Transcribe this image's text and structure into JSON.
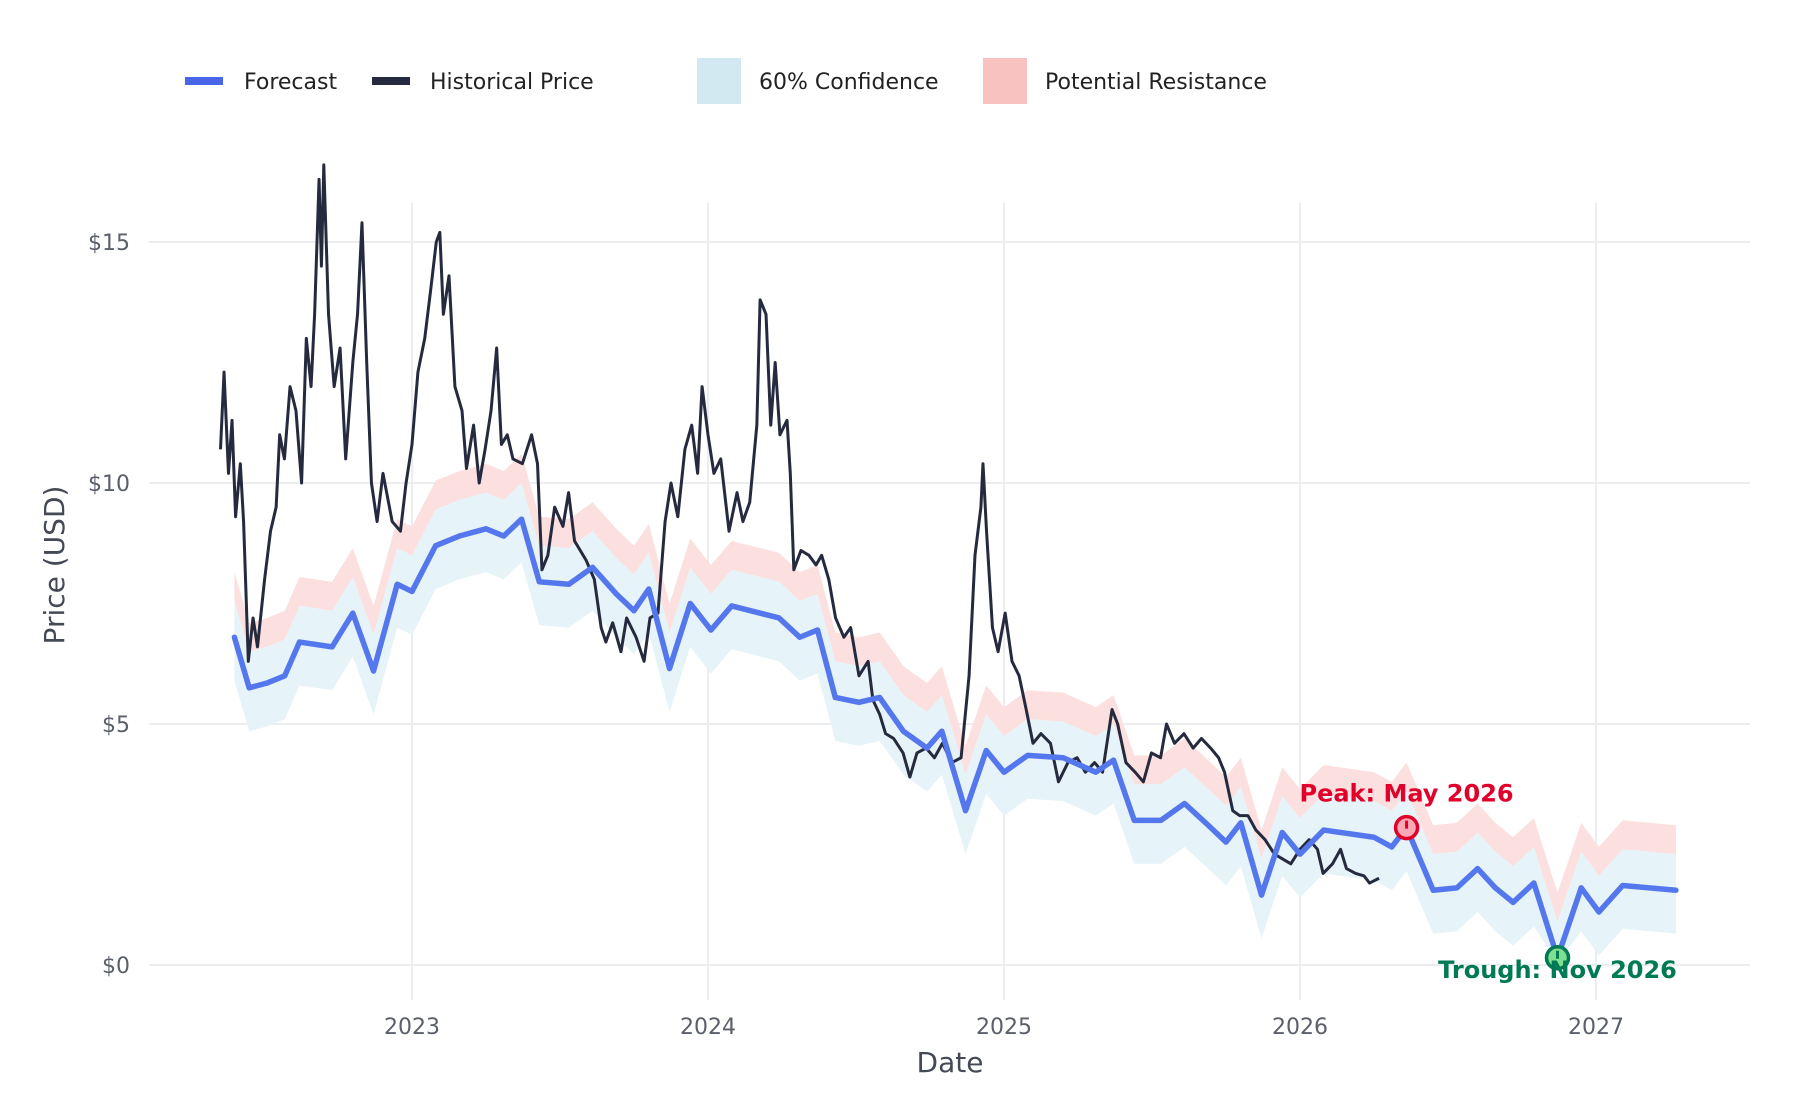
{
  "chart_data": {
    "type": "line",
    "title": "",
    "xlabel": "Date",
    "ylabel": "Price (USD)",
    "xlim": [
      2022.12,
      2027.52
    ],
    "ylim": [
      -0.7,
      17.8
    ],
    "grid": true,
    "legend_position": "top-left",
    "x_ticks": [
      {
        "value": 2023,
        "label": "2023"
      },
      {
        "value": 2024,
        "label": "2024"
      },
      {
        "value": 2025,
        "label": "2025"
      },
      {
        "value": 2026,
        "label": "2026"
      },
      {
        "value": 2027,
        "label": "2027"
      }
    ],
    "y_ticks": [
      {
        "value": 0,
        "label": "$0"
      },
      {
        "value": 5,
        "label": "$5"
      },
      {
        "value": 10,
        "label": "$10"
      },
      {
        "value": 15,
        "label": "$15"
      }
    ],
    "legend": [
      {
        "label": "Forecast",
        "kind": "line",
        "color": "#4a66e8"
      },
      {
        "label": "Historical Price",
        "kind": "line",
        "color": "#262a3f"
      },
      {
        "label": "60% Confidence",
        "kind": "box",
        "color": "#d3e9f1"
      },
      {
        "label": "Potential Resistance",
        "kind": "box",
        "color": "#f8c2c0"
      }
    ],
    "colors": {
      "forecast": "#5577ee",
      "historical": "#262a3f",
      "confidence": "#e6f3f8",
      "resistance": "#fbe0df",
      "peak": "#e0002a",
      "trough": "#007a55",
      "grid": "#ebedf0"
    },
    "series": [
      {
        "name": "Historical Price",
        "points": [
          [
            2022.353,
            10.7
          ],
          [
            2022.365,
            12.3
          ],
          [
            2022.38,
            10.2
          ],
          [
            2022.392,
            11.3
          ],
          [
            2022.404,
            9.3
          ],
          [
            2022.42,
            10.4
          ],
          [
            2022.431,
            9.2
          ],
          [
            2022.447,
            6.3
          ],
          [
            2022.463,
            7.2
          ],
          [
            2022.478,
            6.6
          ],
          [
            2022.502,
            8.0
          ],
          [
            2022.522,
            9.0
          ],
          [
            2022.541,
            9.5
          ],
          [
            2022.553,
            11.0
          ],
          [
            2022.569,
            10.5
          ],
          [
            2022.588,
            12.0
          ],
          [
            2022.608,
            11.5
          ],
          [
            2022.627,
            10.0
          ],
          [
            2022.643,
            13.0
          ],
          [
            2022.659,
            12.0
          ],
          [
            2022.671,
            13.5
          ],
          [
            2022.686,
            16.3
          ],
          [
            2022.694,
            14.5
          ],
          [
            2022.702,
            16.6
          ],
          [
            2022.718,
            13.5
          ],
          [
            2022.737,
            12.0
          ],
          [
            2022.757,
            12.8
          ],
          [
            2022.776,
            10.5
          ],
          [
            2022.8,
            12.5
          ],
          [
            2022.816,
            13.5
          ],
          [
            2022.831,
            15.4
          ],
          [
            2022.847,
            12.5
          ],
          [
            2022.863,
            10.0
          ],
          [
            2022.882,
            9.2
          ],
          [
            2022.902,
            10.2
          ],
          [
            2022.933,
            9.2
          ],
          [
            2022.961,
            9.0
          ],
          [
            2022.98,
            10.0
          ],
          [
            2023.0,
            10.8
          ],
          [
            2023.02,
            12.3
          ],
          [
            2023.043,
            13.0
          ],
          [
            2023.063,
            14.0
          ],
          [
            2023.082,
            15.0
          ],
          [
            2023.094,
            15.2
          ],
          [
            2023.106,
            13.5
          ],
          [
            2023.125,
            14.3
          ],
          [
            2023.145,
            12.0
          ],
          [
            2023.169,
            11.5
          ],
          [
            2023.184,
            10.3
          ],
          [
            2023.208,
            11.2
          ],
          [
            2023.227,
            10.0
          ],
          [
            2023.247,
            10.7
          ],
          [
            2023.267,
            11.5
          ],
          [
            2023.286,
            12.8
          ],
          [
            2023.302,
            10.8
          ],
          [
            2023.322,
            11.0
          ],
          [
            2023.341,
            10.5
          ],
          [
            2023.373,
            10.4
          ],
          [
            2023.404,
            11.0
          ],
          [
            2023.424,
            10.4
          ],
          [
            2023.439,
            8.2
          ],
          [
            2023.459,
            8.5
          ],
          [
            2023.482,
            9.5
          ],
          [
            2023.51,
            9.1
          ],
          [
            2023.529,
            9.8
          ],
          [
            2023.549,
            8.8
          ],
          [
            2023.588,
            8.4
          ],
          [
            2023.616,
            8.0
          ],
          [
            2023.639,
            7.0
          ],
          [
            2023.655,
            6.7
          ],
          [
            2023.678,
            7.1
          ],
          [
            2023.706,
            6.5
          ],
          [
            2023.725,
            7.2
          ],
          [
            2023.757,
            6.8
          ],
          [
            2023.784,
            6.3
          ],
          [
            2023.804,
            7.2
          ],
          [
            2023.831,
            7.3
          ],
          [
            2023.855,
            9.2
          ],
          [
            2023.875,
            10.0
          ],
          [
            2023.898,
            9.3
          ],
          [
            2023.922,
            10.7
          ],
          [
            2023.945,
            11.2
          ],
          [
            2023.965,
            10.2
          ],
          [
            2023.98,
            12.0
          ],
          [
            2024.0,
            11.0
          ],
          [
            2024.02,
            10.2
          ],
          [
            2024.043,
            10.5
          ],
          [
            2024.071,
            9.0
          ],
          [
            2024.098,
            9.8
          ],
          [
            2024.118,
            9.2
          ],
          [
            2024.141,
            9.6
          ],
          [
            2024.165,
            11.2
          ],
          [
            2024.176,
            13.8
          ],
          [
            2024.196,
            13.5
          ],
          [
            2024.212,
            11.2
          ],
          [
            2024.227,
            12.5
          ],
          [
            2024.243,
            11.0
          ],
          [
            2024.267,
            11.3
          ],
          [
            2024.278,
            10.2
          ],
          [
            2024.29,
            8.2
          ],
          [
            2024.314,
            8.6
          ],
          [
            2024.341,
            8.5
          ],
          [
            2024.365,
            8.3
          ],
          [
            2024.384,
            8.5
          ],
          [
            2024.408,
            8.0
          ],
          [
            2024.431,
            7.2
          ],
          [
            2024.459,
            6.8
          ],
          [
            2024.482,
            7.0
          ],
          [
            2024.51,
            6.0
          ],
          [
            2024.541,
            6.3
          ],
          [
            2024.557,
            5.5
          ],
          [
            2024.58,
            5.2
          ],
          [
            2024.6,
            4.8
          ],
          [
            2024.627,
            4.7
          ],
          [
            2024.659,
            4.4
          ],
          [
            2024.682,
            3.9
          ],
          [
            2024.706,
            4.4
          ],
          [
            2024.737,
            4.5
          ],
          [
            2024.765,
            4.3
          ],
          [
            2024.792,
            4.6
          ],
          [
            2024.824,
            4.2
          ],
          [
            2024.855,
            4.3
          ],
          [
            2024.882,
            6.0
          ],
          [
            2024.902,
            8.5
          ],
          [
            2024.922,
            9.5
          ],
          [
            2024.929,
            10.4
          ],
          [
            2024.941,
            9.0
          ],
          [
            2024.961,
            7.0
          ],
          [
            2024.98,
            6.5
          ],
          [
            2025.004,
            7.3
          ],
          [
            2025.027,
            6.3
          ],
          [
            2025.051,
            6.0
          ],
          [
            2025.075,
            5.3
          ],
          [
            2025.098,
            4.6
          ],
          [
            2025.125,
            4.8
          ],
          [
            2025.157,
            4.6
          ],
          [
            2025.184,
            3.8
          ],
          [
            2025.216,
            4.2
          ],
          [
            2025.247,
            4.3
          ],
          [
            2025.275,
            4.0
          ],
          [
            2025.306,
            4.2
          ],
          [
            2025.333,
            4.0
          ],
          [
            2025.365,
            5.3
          ],
          [
            2025.384,
            5.0
          ],
          [
            2025.412,
            4.2
          ],
          [
            2025.443,
            4.0
          ],
          [
            2025.471,
            3.8
          ],
          [
            2025.498,
            4.4
          ],
          [
            2025.529,
            4.3
          ],
          [
            2025.549,
            5.0
          ],
          [
            2025.576,
            4.6
          ],
          [
            2025.608,
            4.8
          ],
          [
            2025.639,
            4.5
          ],
          [
            2025.667,
            4.7
          ],
          [
            2025.698,
            4.5
          ],
          [
            2025.725,
            4.3
          ],
          [
            2025.745,
            4.0
          ],
          [
            2025.773,
            3.2
          ],
          [
            2025.796,
            3.1
          ],
          [
            2025.824,
            3.1
          ],
          [
            2025.851,
            2.8
          ],
          [
            2025.882,
            2.6
          ],
          [
            2025.914,
            2.3
          ],
          [
            2025.941,
            2.2
          ],
          [
            2025.969,
            2.1
          ],
          [
            2026.0,
            2.4
          ],
          [
            2026.031,
            2.6
          ],
          [
            2026.059,
            2.4
          ],
          [
            2026.078,
            1.9
          ],
          [
            2026.11,
            2.1
          ],
          [
            2026.137,
            2.4
          ],
          [
            2026.157,
            2.0
          ],
          [
            2026.188,
            1.9
          ],
          [
            2026.216,
            1.85
          ],
          [
            2026.235,
            1.7
          ],
          [
            2026.267,
            1.8
          ]
        ]
      },
      {
        "name": "Forecast",
        "points": [
          [
            2022.4,
            6.8
          ],
          [
            2022.45,
            5.75
          ],
          [
            2022.51,
            5.85
          ],
          [
            2022.57,
            6.0
          ],
          [
            2022.62,
            6.7
          ],
          [
            2022.73,
            6.6
          ],
          [
            2022.8,
            7.3
          ],
          [
            2022.87,
            6.1
          ],
          [
            2022.95,
            7.9
          ],
          [
            2023.0,
            7.75
          ],
          [
            2023.08,
            8.7
          ],
          [
            2023.16,
            8.9
          ],
          [
            2023.25,
            9.05
          ],
          [
            2023.31,
            8.9
          ],
          [
            2023.37,
            9.25
          ],
          [
            2023.43,
            7.95
          ],
          [
            2023.53,
            7.9
          ],
          [
            2023.61,
            8.25
          ],
          [
            2023.69,
            7.7
          ],
          [
            2023.75,
            7.35
          ],
          [
            2023.8,
            7.8
          ],
          [
            2023.87,
            6.15
          ],
          [
            2023.94,
            7.5
          ],
          [
            2024.01,
            6.95
          ],
          [
            2024.08,
            7.45
          ],
          [
            2024.24,
            7.2
          ],
          [
            2024.31,
            6.8
          ],
          [
            2024.37,
            6.95
          ],
          [
            2024.43,
            5.55
          ],
          [
            2024.51,
            5.45
          ],
          [
            2024.58,
            5.55
          ],
          [
            2024.66,
            4.85
          ],
          [
            2024.74,
            4.5
          ],
          [
            2024.79,
            4.85
          ],
          [
            2024.87,
            3.2
          ],
          [
            2024.94,
            4.45
          ],
          [
            2025.0,
            4.0
          ],
          [
            2025.08,
            4.35
          ],
          [
            2025.2,
            4.3
          ],
          [
            2025.31,
            4.0
          ],
          [
            2025.37,
            4.25
          ],
          [
            2025.44,
            3.0
          ],
          [
            2025.53,
            3.0
          ],
          [
            2025.61,
            3.35
          ],
          [
            2025.69,
            2.9
          ],
          [
            2025.75,
            2.55
          ],
          [
            2025.8,
            2.95
          ],
          [
            2025.87,
            1.45
          ],
          [
            2025.94,
            2.75
          ],
          [
            2026.0,
            2.3
          ],
          [
            2026.08,
            2.8
          ],
          [
            2026.25,
            2.65
          ],
          [
            2026.31,
            2.45
          ],
          [
            2026.36,
            2.85
          ],
          [
            2026.45,
            1.55
          ],
          [
            2026.53,
            1.6
          ],
          [
            2026.6,
            2.0
          ],
          [
            2026.66,
            1.6
          ],
          [
            2026.72,
            1.3
          ],
          [
            2026.79,
            1.7
          ],
          [
            2026.87,
            0.15
          ],
          [
            2026.95,
            1.6
          ],
          [
            2027.01,
            1.1
          ],
          [
            2027.09,
            1.65
          ],
          [
            2027.27,
            1.55
          ]
        ]
      }
    ],
    "bands": {
      "confidence": {
        "label": "60% Confidence",
        "lower_offset": -0.9,
        "upper_offset": 0.75
      },
      "resistance": {
        "label": "Potential Resistance",
        "lower_offset": 0.75,
        "upper_offset": 1.35
      }
    },
    "annotations": [
      {
        "name": "peak",
        "text": "Peak: May 2026",
        "x": 2026.36,
        "y": 2.85
      },
      {
        "name": "trough",
        "text": "Trough: Nov 2026",
        "x": 2026.87,
        "y": 0.15
      }
    ]
  }
}
